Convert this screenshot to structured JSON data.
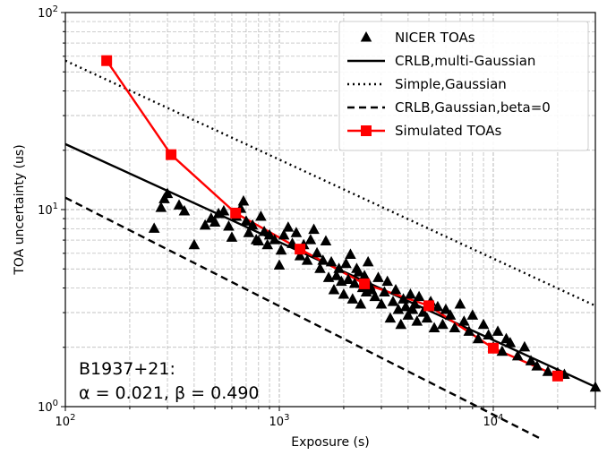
{
  "chart_data": {
    "type": "scatter",
    "xlabel": "Exposure (s)",
    "ylabel": "TOA uncertainty (us)",
    "xscale": "log",
    "yscale": "log",
    "xlim": [
      100,
      30000
    ],
    "ylim": [
      1,
      100
    ],
    "grid": true,
    "legend_position": "top-right",
    "x_major_ticks": [
      {
        "value": 100,
        "base": "10",
        "exp": "2"
      },
      {
        "value": 1000,
        "base": "10",
        "exp": "3"
      },
      {
        "value": 10000,
        "base": "10",
        "exp": "4"
      }
    ],
    "y_major_ticks": [
      {
        "value": 1,
        "base": "10",
        "exp": "0"
      },
      {
        "value": 10,
        "base": "10",
        "exp": "1"
      },
      {
        "value": 100,
        "base": "10",
        "exp": "2"
      }
    ],
    "annotation": {
      "line1": "B1937+21:",
      "line2": "α = 0.021, β = 0.490"
    },
    "series": [
      {
        "name": "NICER TOAs",
        "kind": "scatter",
        "marker": "triangle",
        "color": "#000000",
        "points": [
          [
            260,
            8.0
          ],
          [
            280,
            10.2
          ],
          [
            290,
            11.3
          ],
          [
            300,
            12.0
          ],
          [
            340,
            10.5
          ],
          [
            360,
            9.8
          ],
          [
            400,
            6.6
          ],
          [
            450,
            8.3
          ],
          [
            480,
            9.0
          ],
          [
            500,
            8.6
          ],
          [
            520,
            9.5
          ],
          [
            550,
            9.8
          ],
          [
            580,
            8.2
          ],
          [
            600,
            7.2
          ],
          [
            630,
            9.2
          ],
          [
            660,
            10.1
          ],
          [
            680,
            11.0
          ],
          [
            700,
            8.7
          ],
          [
            720,
            7.6
          ],
          [
            750,
            8.3
          ],
          [
            780,
            7.0
          ],
          [
            800,
            6.9
          ],
          [
            820,
            9.2
          ],
          [
            850,
            7.7
          ],
          [
            880,
            6.6
          ],
          [
            900,
            7.4
          ],
          [
            950,
            7.0
          ],
          [
            1000,
            5.2
          ],
          [
            1020,
            6.2
          ],
          [
            1050,
            7.4
          ],
          [
            1100,
            8.1
          ],
          [
            1150,
            6.7
          ],
          [
            1200,
            7.6
          ],
          [
            1250,
            5.8
          ],
          [
            1300,
            6.6
          ],
          [
            1350,
            5.5
          ],
          [
            1400,
            7.0
          ],
          [
            1450,
            7.9
          ],
          [
            1500,
            6.0
          ],
          [
            1550,
            5.0
          ],
          [
            1600,
            5.5
          ],
          [
            1650,
            6.9
          ],
          [
            1700,
            4.5
          ],
          [
            1750,
            5.4
          ],
          [
            1800,
            3.9
          ],
          [
            1850,
            4.6
          ],
          [
            1900,
            5.0
          ],
          [
            1950,
            4.3
          ],
          [
            2000,
            3.7
          ],
          [
            2050,
            5.3
          ],
          [
            2100,
            4.4
          ],
          [
            2150,
            5.9
          ],
          [
            2200,
            3.5
          ],
          [
            2250,
            4.2
          ],
          [
            2300,
            5.0
          ],
          [
            2350,
            4.8
          ],
          [
            2400,
            3.3
          ],
          [
            2450,
            4.0
          ],
          [
            2500,
            4.6
          ],
          [
            2550,
            3.8
          ],
          [
            2600,
            5.4
          ],
          [
            2650,
            4.1
          ],
          [
            2700,
            3.9
          ],
          [
            2800,
            3.6
          ],
          [
            2900,
            4.5
          ],
          [
            3000,
            3.3
          ],
          [
            3100,
            3.8
          ],
          [
            3200,
            4.3
          ],
          [
            3300,
            2.8
          ],
          [
            3400,
            3.4
          ],
          [
            3500,
            3.9
          ],
          [
            3600,
            3.1
          ],
          [
            3700,
            2.6
          ],
          [
            3800,
            3.5
          ],
          [
            3900,
            3.2
          ],
          [
            4000,
            2.9
          ],
          [
            4100,
            3.7
          ],
          [
            4200,
            3.1
          ],
          [
            4300,
            3.3
          ],
          [
            4400,
            2.7
          ],
          [
            4500,
            3.6
          ],
          [
            4700,
            3.0
          ],
          [
            4900,
            2.8
          ],
          [
            5100,
            3.4
          ],
          [
            5300,
            2.5
          ],
          [
            5500,
            3.2
          ],
          [
            5800,
            2.6
          ],
          [
            6000,
            3.1
          ],
          [
            6300,
            2.9
          ],
          [
            6600,
            2.5
          ],
          [
            7000,
            3.3
          ],
          [
            7300,
            2.7
          ],
          [
            7700,
            2.4
          ],
          [
            8000,
            2.9
          ],
          [
            8500,
            2.2
          ],
          [
            9000,
            2.6
          ],
          [
            9500,
            2.3
          ],
          [
            10000,
            2.0
          ],
          [
            10500,
            2.4
          ],
          [
            11000,
            1.9
          ],
          [
            11500,
            2.2
          ],
          [
            12000,
            2.1
          ],
          [
            13000,
            1.8
          ],
          [
            14000,
            2.0
          ],
          [
            15000,
            1.7
          ],
          [
            16000,
            1.6
          ],
          [
            18000,
            1.5
          ],
          [
            20000,
            1.48
          ],
          [
            21500,
            1.45
          ],
          [
            30000,
            1.25
          ]
        ]
      },
      {
        "name": "CRLB,multi-Gaussian",
        "kind": "line",
        "dash": "solid",
        "color": "#000000",
        "points": [
          [
            100,
            21.5
          ],
          [
            30000,
            1.26
          ]
        ]
      },
      {
        "name": "Simple,Gaussian",
        "kind": "line",
        "dash": "dotted",
        "color": "#000000",
        "points": [
          [
            100,
            57
          ],
          [
            30000,
            3.25
          ]
        ]
      },
      {
        "name": "CRLB,Gaussian,beta=0",
        "kind": "line",
        "dash": "dashed",
        "color": "#000000",
        "points": [
          [
            100,
            11.5
          ],
          [
            17000,
            0.68
          ]
        ]
      },
      {
        "name": "Simulated TOAs",
        "kind": "line-marker",
        "marker": "square",
        "color": "#ff0000",
        "points": [
          [
            156,
            57
          ],
          [
            312,
            19
          ],
          [
            625,
            9.6
          ],
          [
            1250,
            6.3
          ],
          [
            2500,
            4.2
          ],
          [
            5000,
            3.25
          ],
          [
            10000,
            1.98
          ],
          [
            20000,
            1.43
          ]
        ]
      }
    ]
  }
}
